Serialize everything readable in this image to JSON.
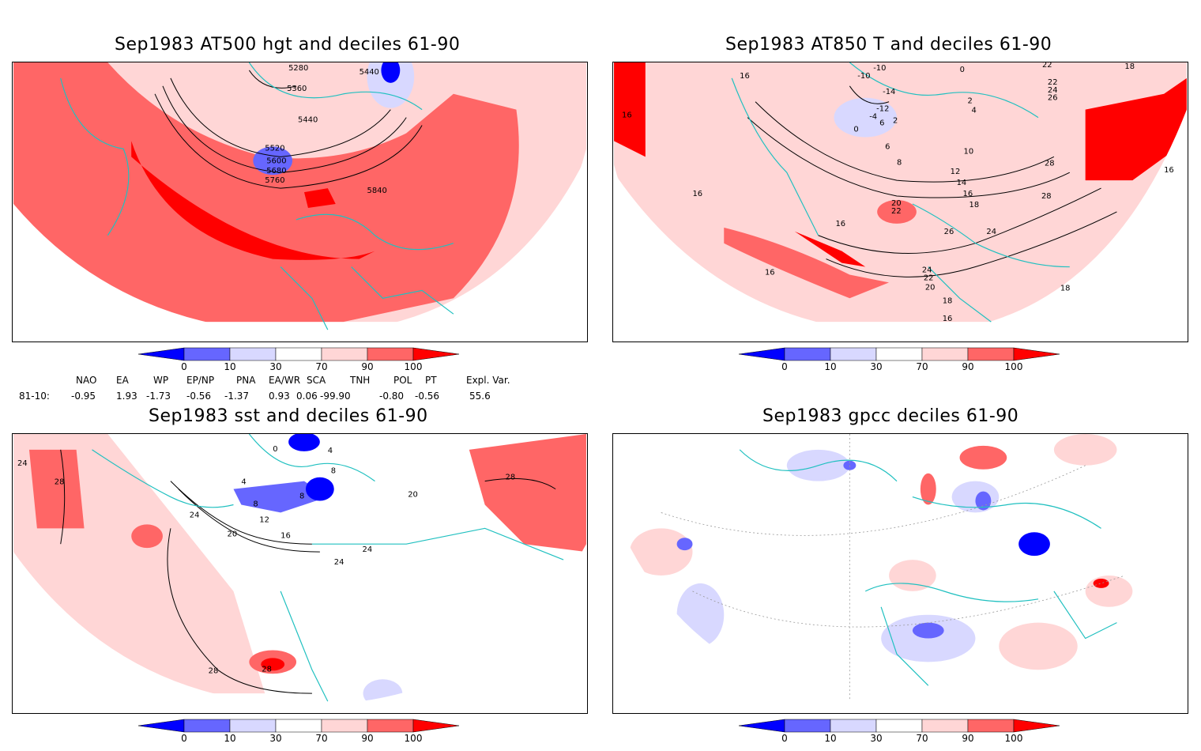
{
  "panels": [
    {
      "id": "p1",
      "title": "Sep1983 AT500 hgt and deciles 61-90",
      "contour_labels": [
        "5280",
        "5360",
        "5440",
        "5440",
        "5520",
        "5600",
        "5680",
        "5760",
        "5840"
      ]
    },
    {
      "id": "p2",
      "title": "Sep1983 AT850 T and deciles 61-90",
      "contour_labels": [
        "16",
        "16",
        "16",
        "-10",
        "-10",
        "-14",
        "-12",
        "-4",
        "6",
        "2",
        "0",
        "0",
        "2",
        "4",
        "22",
        "22",
        "24",
        "26",
        "18",
        "16",
        "10",
        "8",
        "6",
        "12",
        "14",
        "16",
        "18",
        "20",
        "22",
        "16",
        "26",
        "24",
        "28",
        "28",
        "24",
        "22",
        "20",
        "18",
        "16",
        "16",
        "18"
      ]
    },
    {
      "id": "p3",
      "title": "Sep1983 sst and deciles 61-90",
      "contour_labels": [
        "24",
        "28",
        "4",
        "8",
        "8",
        "8",
        "12",
        "16",
        "20",
        "24",
        "24",
        "24",
        "20",
        "28",
        "28",
        "28",
        "0",
        "4"
      ]
    },
    {
      "id": "p4",
      "title": "Sep1983 gpcc deciles 61-90",
      "contour_labels": []
    }
  ],
  "colorbar": {
    "ticks": [
      "0",
      "10",
      "30",
      "70",
      "90",
      "100"
    ],
    "colors": [
      "#0000ff",
      "#6666ff",
      "#d8d8ff",
      "#ffffff",
      "#ffd6d6",
      "#ff6666",
      "#ff0000"
    ]
  },
  "indices": {
    "headers": [
      "NAO",
      "EA",
      "WP",
      "EP/NP",
      "PNA",
      "EA/WR",
      "SCA",
      "TNH",
      "POL",
      "PT",
      "Expl. Var."
    ],
    "row_label": "81-10:",
    "values": [
      "-0.95",
      "1.93",
      "-1.73",
      "-0.56",
      "-1.37",
      "0.93",
      "0.06",
      "-99.90",
      "-0.80",
      "-0.56",
      "55.6"
    ]
  },
  "colors": {
    "coast": "#20c0c0",
    "decile_red": "#ff6666",
    "decile_dark_red": "#ff0000",
    "decile_pink": "#ffd6d6",
    "decile_blue": "#6666ff"
  }
}
